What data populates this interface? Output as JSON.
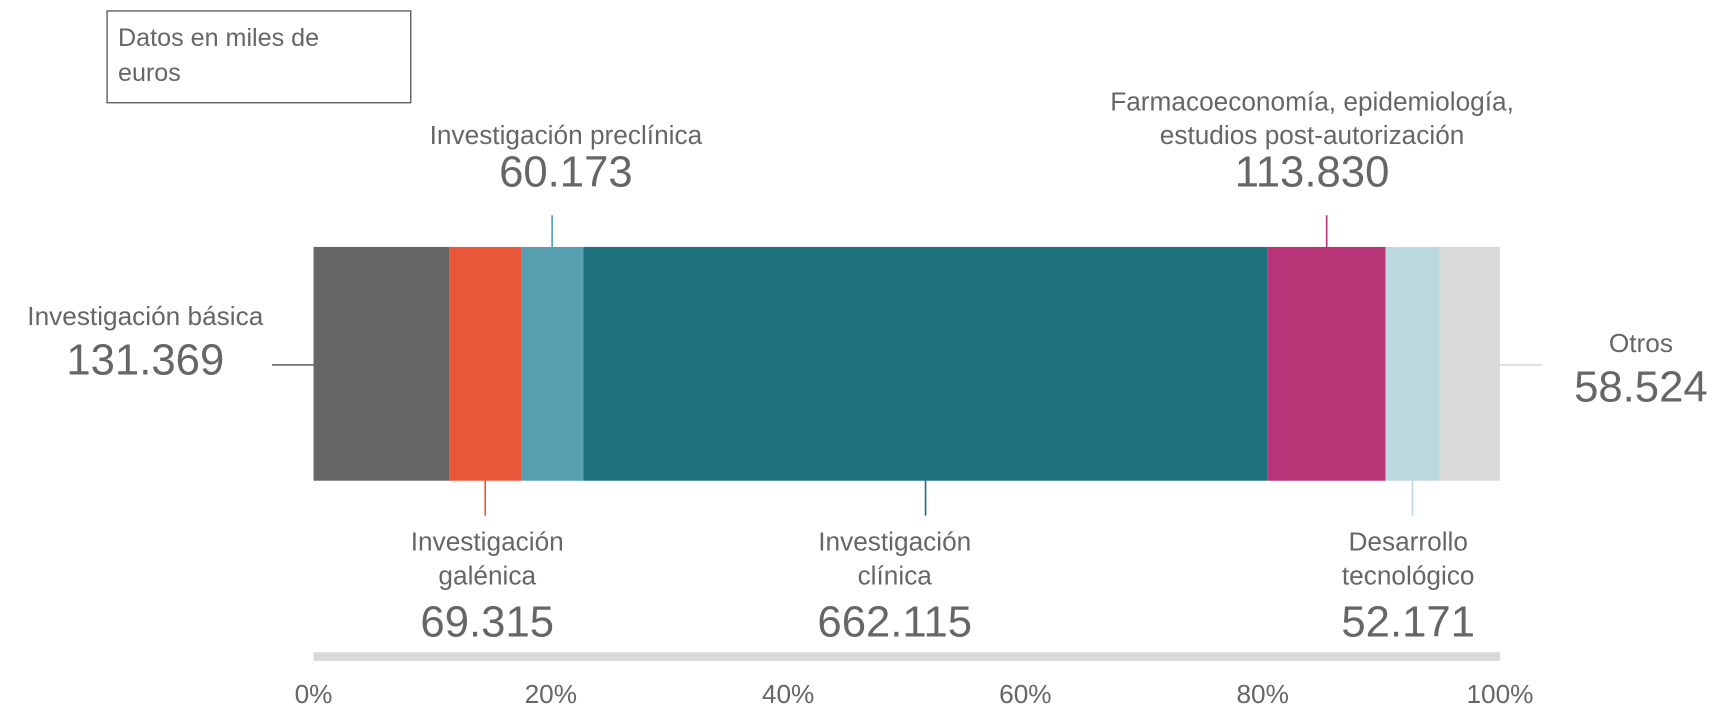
{
  "chart_data": {
    "type": "stacked_bar_100",
    "note": "Datos en miles de euros",
    "categories": [
      "Investigación básica",
      "Investigación galénica",
      "Investigación preclínica",
      "Investigación clínica",
      "Farmacoeconomía, epidemiología, estudios post-autorización",
      "Desarrollo tecnológico",
      "Otros"
    ],
    "values": [
      131369,
      69315,
      60173,
      662115,
      113830,
      52171,
      58524
    ],
    "value_labels": [
      "131.369",
      "69.315",
      "60.173",
      "662.115",
      "113.830",
      "52.171",
      "58.524"
    ],
    "colors": [
      "#666666",
      "#e8573a",
      "#569eb0",
      "#1f717e",
      "#b83577",
      "#bdd9e0",
      "#d9d9d9"
    ],
    "xlim": [
      0,
      100
    ],
    "xticks": [
      {
        "value": 0,
        "label": "0%"
      },
      {
        "value": 20,
        "label": "20%"
      },
      {
        "value": 40,
        "label": "40%"
      },
      {
        "value": 60,
        "label": "60%"
      },
      {
        "value": 80,
        "label": "80%"
      },
      {
        "value": 100,
        "label": "100%"
      }
    ]
  }
}
